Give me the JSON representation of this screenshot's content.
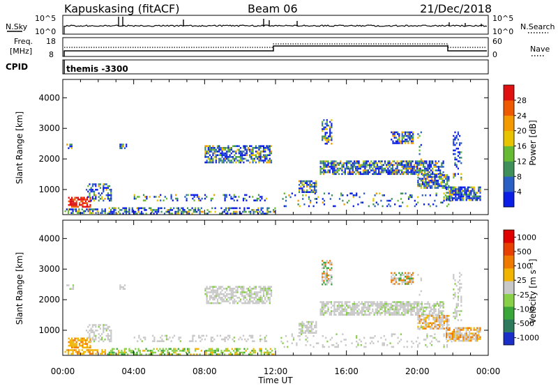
{
  "header": {
    "station": "Kapuskasing (fitACF)",
    "beam": "Beam 06",
    "date": "21/Dec/2018"
  },
  "status_panels": {
    "nsky": {
      "left_label": "N.Sky",
      "right_label": "N.Search",
      "left_ticks": [
        "10^5",
        "10^0"
      ],
      "right_ticks": [
        "10^5",
        "10^0"
      ]
    },
    "freq": {
      "left_label_1": "Freq.",
      "left_label_2": "[MHz]",
      "right_label": "Nave",
      "left_ticks": [
        "18",
        "8"
      ],
      "right_ticks": [
        "60",
        "0"
      ]
    },
    "cpid": {
      "label": "CPID",
      "value": "themis -3300"
    }
  },
  "chart_data": [
    {
      "type": "heatmap",
      "panel": "power",
      "ylabel": "Slant Range [km]",
      "y_ticks": [
        "1000",
        "2000",
        "3000",
        "4000"
      ],
      "ylim": [
        180,
        4600
      ],
      "x_range_hours": [
        0,
        24
      ],
      "colorbar": {
        "label": "Power [dB]",
        "ticks": [
          "4",
          "8",
          "12",
          "16",
          "20",
          "24",
          "28"
        ],
        "colors": [
          "#0a1ee6",
          "#2a5fc4",
          "#3f8f5a",
          "#66bb33",
          "#e8c400",
          "#f39a00",
          "#ef5a00",
          "#e01010"
        ]
      }
    },
    {
      "type": "heatmap",
      "panel": "velocity",
      "ylabel": "Slant Range [km]",
      "y_ticks": [
        "1000",
        "2000",
        "3000",
        "4000"
      ],
      "ylim": [
        180,
        4600
      ],
      "x_range_hours": [
        0,
        24
      ],
      "colorbar": {
        "label": "Velocity  [m s⁻¹]",
        "ticks": [
          "1000",
          "500",
          "100",
          "25",
          "-25",
          "-100",
          "-500",
          "-1000"
        ],
        "colors": [
          "#1a2fc8",
          "#2d7a5c",
          "#3aa63a",
          "#88d048",
          "#c8c8c8",
          "#f1b400",
          "#f07a00",
          "#e84000",
          "#e00000"
        ]
      }
    }
  ],
  "x_axis": {
    "ticks": [
      "00:00",
      "04:00",
      "08:00",
      "12:00",
      "16:00",
      "20:00",
      "00:00"
    ],
    "label": "Time UT"
  },
  "colors": {
    "axis": "#000000",
    "gray_scatter": "#c8c8c8"
  }
}
